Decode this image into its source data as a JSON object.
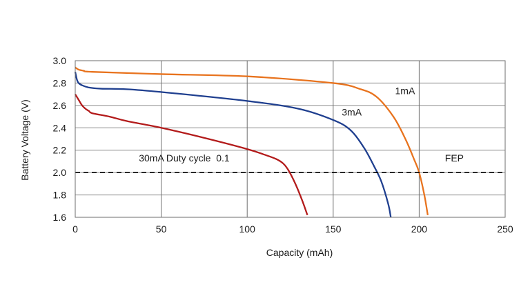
{
  "chart_data": {
    "type": "line",
    "title": "",
    "xlabel": "Capacity (mAh)",
    "ylabel": "Battery Voltage (V)",
    "xlim": [
      0,
      250
    ],
    "ylim": [
      1.6,
      3.0
    ],
    "x_ticks": [
      "0",
      "50",
      "100",
      "150",
      "200",
      "250"
    ],
    "y_ticks": [
      "1.6",
      "1.8",
      "2.0",
      "2.2",
      "2.4",
      "2.6",
      "2.8",
      "3.0"
    ],
    "grid": true,
    "legend": "none",
    "series": [
      {
        "name": "1mA",
        "color": "#e8731e",
        "x": [
          0,
          2,
          5,
          10,
          50,
          100,
          150,
          165,
          175,
          185,
          192,
          197,
          200,
          203,
          205
        ],
        "y": [
          2.94,
          2.92,
          2.91,
          2.9,
          2.88,
          2.86,
          2.8,
          2.75,
          2.68,
          2.5,
          2.3,
          2.12,
          2.0,
          1.8,
          1.62
        ]
      },
      {
        "name": "3mA",
        "color": "#1f3f8f",
        "x": [
          0,
          1,
          2,
          4,
          8,
          15,
          30,
          50,
          100,
          130,
          150,
          160,
          168,
          174,
          178,
          182,
          183.5
        ],
        "y": [
          2.9,
          2.83,
          2.8,
          2.78,
          2.76,
          2.75,
          2.745,
          2.72,
          2.64,
          2.57,
          2.47,
          2.38,
          2.22,
          2.05,
          1.92,
          1.72,
          1.6
        ]
      },
      {
        "name": "30mA Duty cycle  0.1",
        "color": "#b31b1b",
        "x": [
          0,
          2,
          4,
          6,
          8,
          10,
          20,
          30,
          50,
          75,
          100,
          110,
          117,
          121,
          124,
          128,
          132,
          135
        ],
        "y": [
          2.7,
          2.65,
          2.6,
          2.57,
          2.55,
          2.53,
          2.5,
          2.46,
          2.4,
          2.31,
          2.21,
          2.16,
          2.12,
          2.08,
          2.02,
          1.9,
          1.75,
          1.62
        ]
      }
    ],
    "reference_line": {
      "label": "FEP",
      "y": 2.0,
      "style": "dashed",
      "color": "#000000"
    },
    "annotations": [
      {
        "text": "1mA",
        "x": 186,
        "y": 2.7
      },
      {
        "text": "3mA",
        "x": 155,
        "y": 2.51
      },
      {
        "text": "30mA Duty cycle  0.1",
        "x": 37,
        "y": 2.1
      },
      {
        "text": "FEP",
        "x": 215,
        "y": 2.1
      }
    ]
  }
}
